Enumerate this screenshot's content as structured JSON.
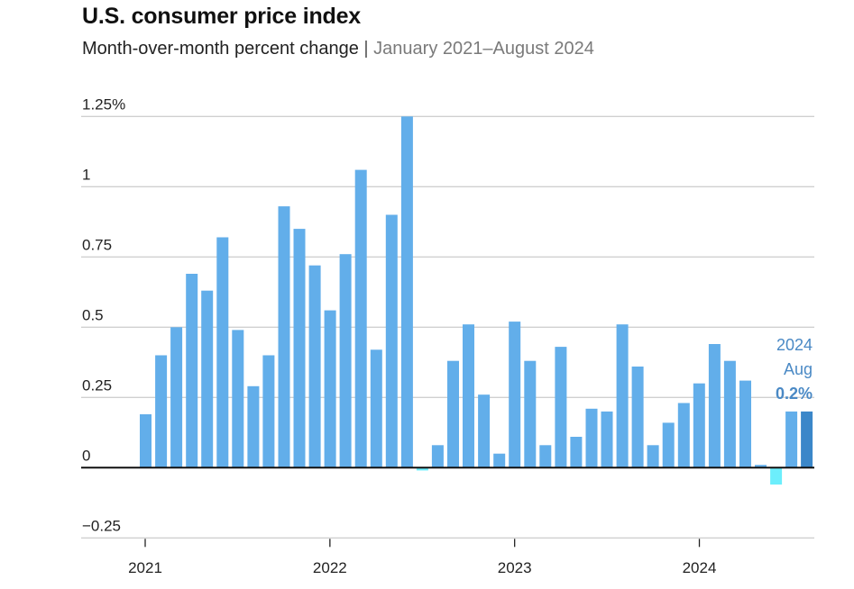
{
  "header": {
    "title": "U.S. consumer price index",
    "subtitle_main": "Month-over-month percent change",
    "subtitle_sep": "|",
    "subtitle_range": "January 2021–August 2024"
  },
  "colors": {
    "bar": "#62aeea",
    "bar_negative": "#6ceefc",
    "bar_highlight": "#3b87c9",
    "annotation": "#4a89c5",
    "grid": "#d0d0d0",
    "zero_line": "#111111"
  },
  "chart_data": {
    "type": "bar",
    "title": "U.S. consumer price index",
    "subtitle": "Month-over-month percent change | January 2021–August 2024",
    "xlabel": "",
    "ylabel": "",
    "ylim": [
      -0.25,
      1.25
    ],
    "yticks": [
      1.25,
      1,
      0.75,
      0.5,
      0.25,
      0,
      -0.25
    ],
    "ytick_labels": [
      "1.25%",
      "1",
      "0.75",
      "0.5",
      "0.25",
      "0",
      "−0.25"
    ],
    "xtick_labels": [
      "2021",
      "2022",
      "2023",
      "2024"
    ],
    "xtick_months_index": [
      0,
      12,
      24,
      36
    ],
    "grid": true,
    "categories": [
      "Jan 2021",
      "Feb 2021",
      "Mar 2021",
      "Apr 2021",
      "May 2021",
      "Jun 2021",
      "Jul 2021",
      "Aug 2021",
      "Sep 2021",
      "Oct 2021",
      "Nov 2021",
      "Dec 2021",
      "Jan 2022",
      "Feb 2022",
      "Mar 2022",
      "Apr 2022",
      "May 2022",
      "Jun 2022",
      "Jul 2022",
      "Aug 2022",
      "Sep 2022",
      "Oct 2022",
      "Nov 2022",
      "Dec 2022",
      "Jan 2023",
      "Feb 2023",
      "Mar 2023",
      "Apr 2023",
      "May 2023",
      "Jun 2023",
      "Jul 2023",
      "Aug 2023",
      "Sep 2023",
      "Oct 2023",
      "Nov 2023",
      "Dec 2023",
      "Jan 2024",
      "Feb 2024",
      "Mar 2024",
      "Apr 2024",
      "May 2024",
      "Jun 2024",
      "Jul 2024",
      "Aug 2024"
    ],
    "values": [
      0.19,
      0.4,
      0.5,
      0.69,
      0.63,
      0.82,
      0.49,
      0.29,
      0.4,
      0.93,
      0.85,
      0.72,
      0.56,
      0.76,
      1.06,
      0.42,
      0.9,
      1.25,
      -0.01,
      0.08,
      0.38,
      0.51,
      0.26,
      0.05,
      0.52,
      0.38,
      0.08,
      0.43,
      0.11,
      0.21,
      0.2,
      0.51,
      0.36,
      0.08,
      0.16,
      0.23,
      0.3,
      0.44,
      0.38,
      0.31,
      0.01,
      -0.06,
      0.2,
      0.2
    ],
    "highlight_index": 43,
    "annotation": {
      "year": "2024",
      "month": "Aug",
      "value": "0.2%"
    }
  }
}
